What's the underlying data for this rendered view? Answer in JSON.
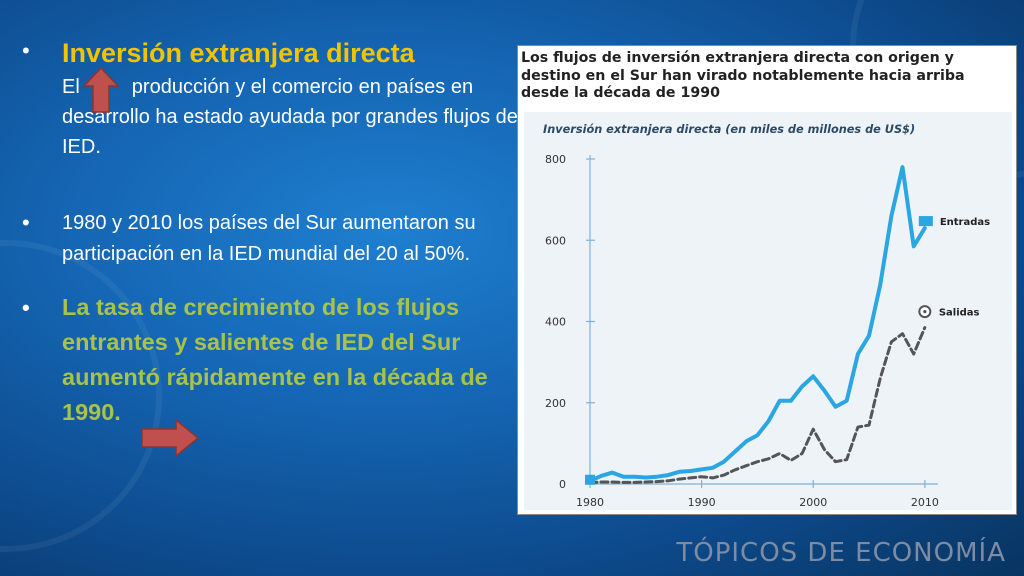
{
  "slide": {
    "footer": "TÓPICOS DE ECONOMÍA",
    "bullet1": {
      "title": "Inversión extranjera directa",
      "text_start": "El",
      "text_rest": "producción y el comercio en países en desarrollo ha estado ayudada por grandes  flujos de  IED."
    },
    "bullet2": {
      "text": "1980 y 2010 los países del Sur aumentaron su participación en la IED mundial del 20 al 50%."
    },
    "bullet3": {
      "text": "La tasa de crecimiento de los flujos entrantes y salientes de IED del Sur aumentó rápidamente en la década de 1990."
    },
    "colors": {
      "title": "#f2c400",
      "highlight": "#a9c24a",
      "arrow": "#c0504d"
    },
    "icons": [
      "up-arrow-icon",
      "right-arrow-icon"
    ]
  },
  "chart_data": {
    "type": "line",
    "headline": "Los flujos de inversión extranjera directa con origen y destino en el Sur han virado notablemente hacia arriba desde la década de 1990",
    "title": "Inversión extranjera directa (en miles de millones de US$)",
    "xlabel": "",
    "ylabel": "",
    "xlim": [
      1980,
      2011
    ],
    "ylim": [
      0,
      800
    ],
    "x_ticks": [
      "1980",
      "1990",
      "2000",
      "2010"
    ],
    "y_ticks": [
      "0",
      "200",
      "400",
      "600",
      "800"
    ],
    "grid": false,
    "legend": "right",
    "series": [
      {
        "name": "Entradas",
        "style": "solid",
        "color": "#2aa6e3",
        "x": [
          1980,
          1981,
          1982,
          1983,
          1984,
          1985,
          1986,
          1987,
          1988,
          1989,
          1990,
          1991,
          1992,
          1993,
          1994,
          1995,
          1996,
          1997,
          1998,
          1999,
          2000,
          2001,
          2002,
          2003,
          2004,
          2005,
          2006,
          2007,
          2008,
          2009,
          2010
        ],
        "y": [
          8,
          20,
          28,
          18,
          18,
          16,
          18,
          22,
          30,
          32,
          36,
          40,
          55,
          80,
          105,
          120,
          155,
          205,
          205,
          240,
          265,
          230,
          190,
          205,
          320,
          365,
          490,
          660,
          780,
          585,
          630
        ]
      },
      {
        "name": "Salidas",
        "style": "dashed",
        "color": "#555555",
        "x": [
          1980,
          1981,
          1982,
          1983,
          1984,
          1985,
          1986,
          1987,
          1988,
          1989,
          1990,
          1991,
          1992,
          1993,
          1994,
          1995,
          1996,
          1997,
          1998,
          1999,
          2000,
          2001,
          2002,
          2003,
          2004,
          2005,
          2006,
          2007,
          2008,
          2009,
          2010
        ],
        "y": [
          3,
          5,
          5,
          4,
          4,
          5,
          6,
          8,
          12,
          15,
          18,
          15,
          22,
          35,
          45,
          55,
          62,
          75,
          58,
          75,
          135,
          85,
          55,
          60,
          140,
          145,
          260,
          350,
          370,
          320,
          385
        ]
      }
    ]
  }
}
